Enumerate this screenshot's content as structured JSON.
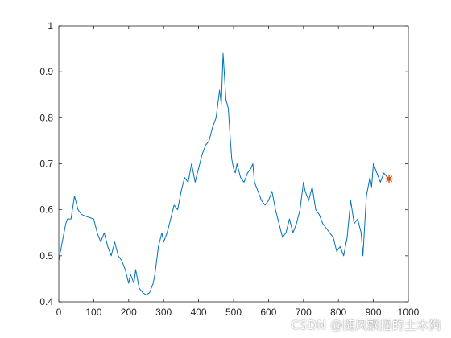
{
  "chart_data": {
    "type": "line",
    "title": "",
    "xlabel": "",
    "ylabel": "",
    "xlim": [
      0,
      1000
    ],
    "ylim": [
      0.4,
      1
    ],
    "xticks": [
      "0",
      "100",
      "200",
      "300",
      "400",
      "500",
      "600",
      "700",
      "800",
      "900",
      "1000"
    ],
    "yticks": [
      "0.4",
      "0.5",
      "0.6",
      "0.7",
      "0.8",
      "0.9",
      "1"
    ],
    "grid": false,
    "legend": "none",
    "series": [
      {
        "color": "#0072BD",
        "x": [
          0,
          10,
          20,
          25,
          35,
          45,
          55,
          65,
          80,
          100,
          110,
          120,
          130,
          140,
          150,
          160,
          170,
          180,
          190,
          200,
          205,
          215,
          220,
          230,
          240,
          250,
          260,
          270,
          275,
          285,
          295,
          300,
          310,
          320,
          330,
          340,
          350,
          360,
          370,
          380,
          390,
          400,
          410,
          420,
          430,
          440,
          450,
          455,
          460,
          465,
          470,
          478,
          485,
          490,
          495,
          500,
          505,
          510,
          520,
          530,
          540,
          550,
          555,
          560,
          570,
          580,
          590,
          600,
          610,
          620,
          630,
          640,
          650,
          660,
          670,
          680,
          690,
          700,
          705,
          715,
          725,
          735,
          745,
          755,
          765,
          775,
          785,
          795,
          805,
          815,
          825,
          835,
          845,
          855,
          865,
          870,
          880,
          890,
          895,
          900,
          910,
          920,
          930,
          940
        ],
        "y": [
          0.49,
          0.53,
          0.57,
          0.58,
          0.58,
          0.63,
          0.6,
          0.59,
          0.585,
          0.58,
          0.55,
          0.53,
          0.55,
          0.52,
          0.5,
          0.53,
          0.5,
          0.49,
          0.47,
          0.44,
          0.46,
          0.44,
          0.47,
          0.43,
          0.42,
          0.415,
          0.42,
          0.44,
          0.46,
          0.52,
          0.55,
          0.53,
          0.55,
          0.58,
          0.61,
          0.6,
          0.64,
          0.67,
          0.66,
          0.7,
          0.66,
          0.69,
          0.72,
          0.74,
          0.75,
          0.78,
          0.8,
          0.83,
          0.86,
          0.83,
          0.94,
          0.84,
          0.82,
          0.76,
          0.71,
          0.69,
          0.68,
          0.7,
          0.67,
          0.66,
          0.68,
          0.69,
          0.7,
          0.66,
          0.64,
          0.62,
          0.61,
          0.62,
          0.64,
          0.6,
          0.57,
          0.54,
          0.55,
          0.58,
          0.55,
          0.57,
          0.6,
          0.66,
          0.64,
          0.62,
          0.65,
          0.6,
          0.59,
          0.57,
          0.56,
          0.55,
          0.54,
          0.51,
          0.52,
          0.5,
          0.54,
          0.62,
          0.57,
          0.58,
          0.55,
          0.5,
          0.63,
          0.67,
          0.65,
          0.7,
          0.68,
          0.66,
          0.68,
          0.67
        ]
      }
    ],
    "markers": [
      {
        "x": 945,
        "y": 0.667,
        "symbol": "*",
        "color": "#D95319"
      }
    ]
  },
  "watermark": "CSDN @随风飘摇的土木狗"
}
